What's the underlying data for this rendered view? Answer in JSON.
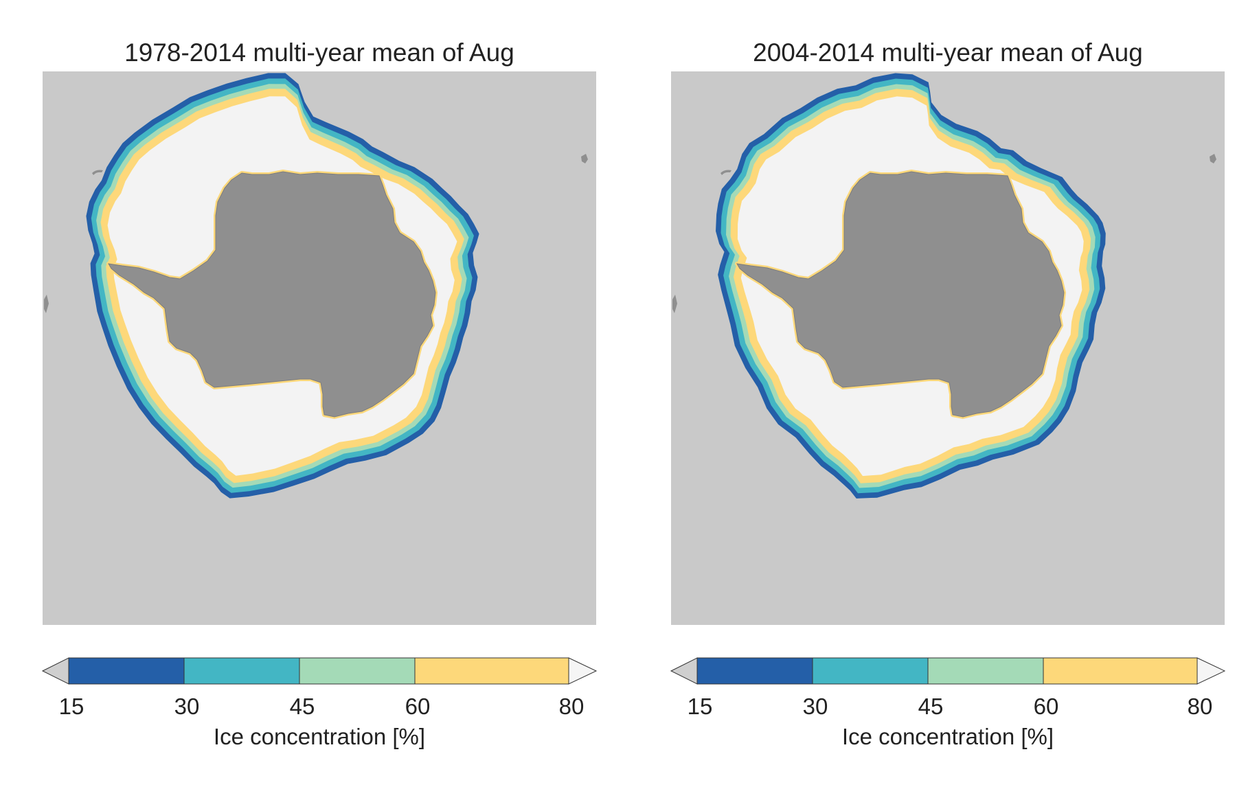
{
  "colors": {
    "ocean": "#c9c9c9",
    "land": "#8f8f8f",
    "land_outline": "#7c7c7c",
    "ice_interior": "#f3f3f3",
    "band_15_30": "#245fa8",
    "band_30_45": "#43b6c4",
    "band_45_60": "#a4dab7",
    "band_60_80": "#fdd87a",
    "below_15": "#cfcfcf",
    "above_80": "#f5f5f5"
  },
  "panels": [
    {
      "title": "1978-2014 multi-year mean of Aug",
      "colorbar": {
        "ticks": [
          "15",
          "30",
          "45",
          "60",
          "80"
        ],
        "label": "Ice concentration [%]"
      }
    },
    {
      "title": "2004-2014 multi-year mean of Aug",
      "colorbar": {
        "ticks": [
          "15",
          "30",
          "45",
          "60",
          "80"
        ],
        "label": "Ice concentration [%]"
      }
    }
  ],
  "chart_data": [
    {
      "type": "heatmap",
      "title": "1978-2014 multi-year mean of Aug",
      "variable": "Ice concentration [%]",
      "levels": [
        15,
        30,
        45,
        60,
        80
      ],
      "extend": "both",
      "band_colors": [
        "#245fa8",
        "#43b6c4",
        "#a4dab7",
        "#fdd87a"
      ]
    },
    {
      "type": "heatmap",
      "title": "2004-2014 multi-year mean of Aug",
      "variable": "Ice concentration [%]",
      "levels": [
        15,
        30,
        45,
        60,
        80
      ],
      "extend": "both",
      "band_colors": [
        "#245fa8",
        "#43b6c4",
        "#a4dab7",
        "#fdd87a"
      ]
    }
  ]
}
